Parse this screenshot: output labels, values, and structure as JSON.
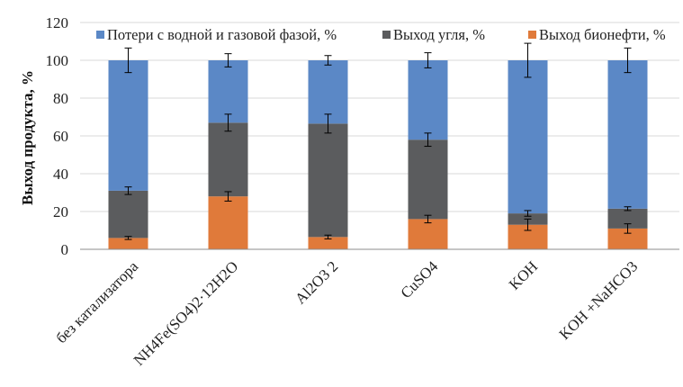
{
  "chart_data": {
    "type": "bar",
    "stacked": true,
    "percent_stacked": true,
    "title": "",
    "xlabel": "",
    "ylabel": "Выход продукта, %",
    "ylim": [
      0,
      120
    ],
    "yticks": [
      0,
      20,
      40,
      60,
      80,
      100,
      120
    ],
    "grid": true,
    "legend_position": "top-center",
    "categories": [
      "без катализатора",
      "NH4Fe(SO4)2·12H2O",
      "Al2O3 2",
      "CuSO4",
      "KOH",
      "KOH +NaHCO3"
    ],
    "series": [
      {
        "name": "Выход бионефти, %",
        "color": "#e07a3a",
        "values": [
          6,
          28,
          6.5,
          16,
          13,
          11
        ],
        "error": [
          0.8,
          2.5,
          1,
          2,
          3,
          2.5
        ]
      },
      {
        "name": "Выход угля, %",
        "color": "#5b5c5e",
        "values": [
          25,
          39,
          60,
          42,
          6,
          10.5
        ],
        "error": [
          2,
          4.5,
          5,
          3.5,
          1.5,
          1
        ]
      },
      {
        "name": "Потери с водной и газовой фазой, %",
        "color": "#5b88c6",
        "values": [
          69,
          33,
          33.5,
          42,
          81,
          78.5
        ],
        "error": [
          6.5,
          3.5,
          2.5,
          4,
          9,
          6.5
        ]
      }
    ],
    "legend_order": [
      "Потери с водной и газовой фазой, %",
      "Выход угля, %",
      "Выход бионефти, %"
    ]
  }
}
